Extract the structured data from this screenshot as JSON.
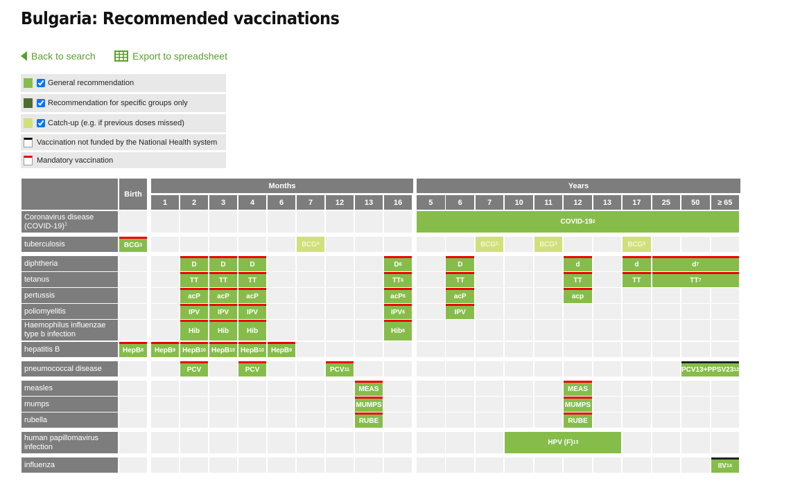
{
  "header": {
    "title": "Bulgaria: Recommended vaccinations"
  },
  "links": {
    "back": "Back to search",
    "export": "Export to spreadsheet"
  },
  "legend": [
    {
      "label": "General recommendation",
      "kind": "general",
      "checkbox": true
    },
    {
      "label": "Recommendation for specific groups only",
      "kind": "specific",
      "checkbox": true
    },
    {
      "label": "Catch-up (e.g. if previous doses missed)",
      "kind": "catchup",
      "checkbox": true
    },
    {
      "label": "Vaccination not funded by the National Health system",
      "kind": "not_funded",
      "checkbox": false
    },
    {
      "label": "Mandatory vaccination",
      "kind": "mandatory",
      "checkbox": false
    }
  ],
  "table": {
    "birth": "Birth",
    "months_label": "Months",
    "months": [
      "1",
      "2",
      "3",
      "4",
      "6",
      "7",
      "12",
      "13",
      "16"
    ],
    "years_label": "Years",
    "years": [
      "5",
      "6",
      "7",
      "10",
      "11",
      "12",
      "13",
      "17",
      "25",
      "50",
      "≥ 65"
    ],
    "rows": [
      {
        "label": "Coronavirus disease (COVID-19)",
        "sup": "1",
        "entries": [
          {
            "group": "years",
            "from": "5",
            "to": "≥ 65",
            "text": "COVID-19",
            "sup": "2",
            "kind": "general"
          }
        ]
      },
      {
        "label": "tuberculosis",
        "entries": [
          {
            "group": "birth",
            "text": "BCG",
            "sup": "3",
            "kind": "general",
            "mandatory": true
          },
          {
            "group": "months",
            "from": "7",
            "to": "7",
            "text": "BCG",
            "sup": "4",
            "kind": "catchup"
          },
          {
            "group": "years",
            "from": "7",
            "to": "7",
            "text": "BCG",
            "sup": "5",
            "kind": "catchup"
          },
          {
            "group": "years",
            "from": "11",
            "to": "11",
            "text": "BCG",
            "sup": "5",
            "kind": "catchup"
          },
          {
            "group": "years",
            "from": "17",
            "to": "17",
            "text": "BCG",
            "sup": "5",
            "kind": "catchup"
          }
        ]
      },
      {
        "label": "diphtheria",
        "entries": [
          {
            "group": "months",
            "from": "2",
            "to": "2",
            "text": "D",
            "kind": "general",
            "mandatory": true
          },
          {
            "group": "months",
            "from": "3",
            "to": "3",
            "text": "D",
            "kind": "general",
            "mandatory": true
          },
          {
            "group": "months",
            "from": "4",
            "to": "4",
            "text": "D",
            "kind": "general",
            "mandatory": true
          },
          {
            "group": "months",
            "from": "16",
            "to": "16",
            "text": "D",
            "sup": "6",
            "kind": "general",
            "mandatory": true
          },
          {
            "group": "years",
            "from": "6",
            "to": "6",
            "text": "D",
            "kind": "general",
            "mandatory": true
          },
          {
            "group": "years",
            "from": "12",
            "to": "12",
            "text": "d",
            "kind": "general",
            "mandatory": true
          },
          {
            "group": "years",
            "from": "17",
            "to": "17",
            "text": "d",
            "kind": "general",
            "mandatory": true
          },
          {
            "group": "years",
            "from": "25",
            "to": "≥ 65",
            "text": "d",
            "sup": "7",
            "kind": "general",
            "mandatory": true
          }
        ]
      },
      {
        "label": "tetanus",
        "entries": [
          {
            "group": "months",
            "from": "2",
            "to": "2",
            "text": "TT",
            "kind": "general",
            "mandatory": true
          },
          {
            "group": "months",
            "from": "3",
            "to": "3",
            "text": "TT",
            "kind": "general",
            "mandatory": true
          },
          {
            "group": "months",
            "from": "4",
            "to": "4",
            "text": "TT",
            "kind": "general",
            "mandatory": true
          },
          {
            "group": "months",
            "from": "16",
            "to": "16",
            "text": "TT",
            "sup": "6",
            "kind": "general",
            "mandatory": true
          },
          {
            "group": "years",
            "from": "6",
            "to": "6",
            "text": "TT",
            "kind": "general",
            "mandatory": true
          },
          {
            "group": "years",
            "from": "12",
            "to": "12",
            "text": "TT",
            "kind": "general",
            "mandatory": true
          },
          {
            "group": "years",
            "from": "17",
            "to": "17",
            "text": "TT",
            "kind": "general",
            "mandatory": true
          },
          {
            "group": "years",
            "from": "25",
            "to": "≥ 65",
            "text": "TT",
            "sup": "7",
            "kind": "general",
            "mandatory": true
          }
        ]
      },
      {
        "label": "pertussis",
        "entries": [
          {
            "group": "months",
            "from": "2",
            "to": "2",
            "text": "acP",
            "kind": "general",
            "mandatory": true
          },
          {
            "group": "months",
            "from": "3",
            "to": "3",
            "text": "acP",
            "kind": "general",
            "mandatory": true
          },
          {
            "group": "months",
            "from": "4",
            "to": "4",
            "text": "acP",
            "kind": "general",
            "mandatory": true
          },
          {
            "group": "months",
            "from": "16",
            "to": "16",
            "text": "acP",
            "sup": "6",
            "kind": "general",
            "mandatory": true
          },
          {
            "group": "years",
            "from": "6",
            "to": "6",
            "text": "acP",
            "kind": "general",
            "mandatory": true
          },
          {
            "group": "years",
            "from": "12",
            "to": "12",
            "text": "acp",
            "kind": "general",
            "mandatory": true
          }
        ]
      },
      {
        "label": "poliomyelitis",
        "entries": [
          {
            "group": "months",
            "from": "2",
            "to": "2",
            "text": "IPV",
            "kind": "general",
            "mandatory": true
          },
          {
            "group": "months",
            "from": "3",
            "to": "3",
            "text": "IPV",
            "kind": "general",
            "mandatory": true
          },
          {
            "group": "months",
            "from": "4",
            "to": "4",
            "text": "IPV",
            "kind": "general",
            "mandatory": true
          },
          {
            "group": "months",
            "from": "16",
            "to": "16",
            "text": "IPV",
            "sup": "6",
            "kind": "general",
            "mandatory": true
          },
          {
            "group": "years",
            "from": "6",
            "to": "6",
            "text": "IPV",
            "kind": "general",
            "mandatory": true
          }
        ]
      },
      {
        "label": "Haemophilus influenzae type b infection",
        "entries": [
          {
            "group": "months",
            "from": "2",
            "to": "2",
            "text": "Hib",
            "kind": "general",
            "mandatory": true
          },
          {
            "group": "months",
            "from": "3",
            "to": "3",
            "text": "Hib",
            "kind": "general",
            "mandatory": true
          },
          {
            "group": "months",
            "from": "4",
            "to": "4",
            "text": "Hib",
            "kind": "general",
            "mandatory": true
          },
          {
            "group": "months",
            "from": "16",
            "to": "16",
            "text": "Hib",
            "sup": "6",
            "kind": "general",
            "mandatory": true
          }
        ]
      },
      {
        "label": "hepatitis B",
        "entries": [
          {
            "group": "birth",
            "text": "HepB",
            "sup": "8",
            "kind": "general",
            "mandatory": true
          },
          {
            "group": "months",
            "from": "1",
            "to": "1",
            "text": "HepB",
            "sup": "9",
            "kind": "general",
            "mandatory": true
          },
          {
            "group": "months",
            "from": "2",
            "to": "2",
            "text": "HepB",
            "sup": "10",
            "kind": "general",
            "mandatory": true
          },
          {
            "group": "months",
            "from": "3",
            "to": "3",
            "text": "HepB",
            "sup": "10",
            "kind": "general",
            "mandatory": true
          },
          {
            "group": "months",
            "from": "4",
            "to": "4",
            "text": "HepB",
            "sup": "10",
            "kind": "general",
            "mandatory": true
          },
          {
            "group": "months",
            "from": "6",
            "to": "6",
            "text": "HepB",
            "sup": "9",
            "kind": "general",
            "mandatory": true
          }
        ]
      },
      {
        "label": "pneumococcal disease",
        "entries": [
          {
            "group": "months",
            "from": "2",
            "to": "2",
            "text": "PCV",
            "kind": "general",
            "mandatory": true
          },
          {
            "group": "months",
            "from": "4",
            "to": "4",
            "text": "PCV",
            "kind": "general",
            "mandatory": true
          },
          {
            "group": "months",
            "from": "12",
            "to": "12",
            "text": "PCV",
            "sup": "11",
            "kind": "general",
            "mandatory": true
          },
          {
            "group": "years",
            "from": "50",
            "to": "≥ 65",
            "text": "PCV13+PPSV23",
            "sup": "12",
            "kind": "general",
            "not_funded": true
          }
        ]
      },
      {
        "label": "measles",
        "entries": [
          {
            "group": "months",
            "from": "13",
            "to": "13",
            "text": "MEAS",
            "kind": "general",
            "mandatory": true
          },
          {
            "group": "years",
            "from": "12",
            "to": "12",
            "text": "MEAS",
            "kind": "general",
            "mandatory": true
          }
        ]
      },
      {
        "label": "mumps",
        "entries": [
          {
            "group": "months",
            "from": "13",
            "to": "13",
            "text": "MUMPS",
            "kind": "general",
            "mandatory": true
          },
          {
            "group": "years",
            "from": "12",
            "to": "12",
            "text": "MUMPS",
            "kind": "general",
            "mandatory": true
          }
        ]
      },
      {
        "label": "rubella",
        "entries": [
          {
            "group": "months",
            "from": "13",
            "to": "13",
            "text": "RUBE",
            "kind": "general",
            "mandatory": true
          },
          {
            "group": "years",
            "from": "12",
            "to": "12",
            "text": "RUBE",
            "kind": "general",
            "mandatory": true
          }
        ]
      },
      {
        "label": "human papillomavirus infection",
        "entries": [
          {
            "group": "years",
            "from": "10",
            "to": "13",
            "text": "HPV (F)",
            "sup": "13",
            "kind": "general"
          }
        ]
      },
      {
        "label": "influenza",
        "entries": [
          {
            "group": "years",
            "from": "≥ 65",
            "to": "≥ 65",
            "text": "IIV",
            "sup": "14",
            "kind": "general",
            "not_funded": true
          }
        ]
      }
    ]
  }
}
